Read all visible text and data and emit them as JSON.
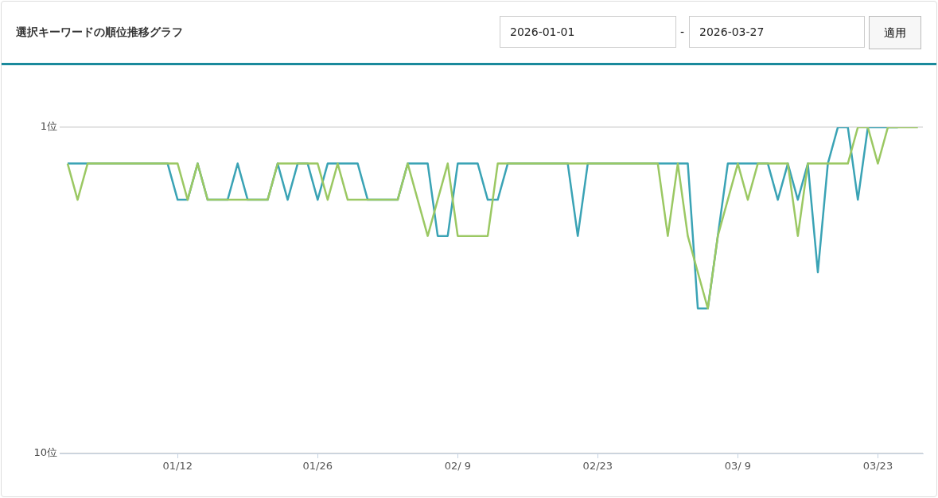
{
  "chart_data": {
    "type": "line",
    "title": "選択キーワードの順位推移グラフ",
    "annotations": [
      "2026-01-01",
      "-",
      "2026-03-27",
      "適用"
    ],
    "x": [
      "2026-01-01",
      "2026-01-02",
      "2026-01-03",
      "2026-01-04",
      "2026-01-05",
      "2026-01-06",
      "2026-01-07",
      "2026-01-08",
      "2026-01-09",
      "2026-01-10",
      "2026-01-11",
      "2026-01-12",
      "2026-01-13",
      "2026-01-14",
      "2026-01-15",
      "2026-01-16",
      "2026-01-17",
      "2026-01-18",
      "2026-01-19",
      "2026-01-20",
      "2026-01-21",
      "2026-01-22",
      "2026-01-23",
      "2026-01-24",
      "2026-01-25",
      "2026-01-26",
      "2026-01-27",
      "2026-01-28",
      "2026-01-29",
      "2026-01-30",
      "2026-01-31",
      "2026-02-01",
      "2026-02-02",
      "2026-02-03",
      "2026-02-04",
      "2026-02-05",
      "2026-02-06",
      "2026-02-07",
      "2026-02-08",
      "2026-02-09",
      "2026-02-10",
      "2026-02-11",
      "2026-02-12",
      "2026-02-13",
      "2026-02-14",
      "2026-02-15",
      "2026-02-16",
      "2026-02-17",
      "2026-02-18",
      "2026-02-19",
      "2026-02-20",
      "2026-02-21",
      "2026-02-22",
      "2026-02-23",
      "2026-02-24",
      "2026-02-25",
      "2026-02-26",
      "2026-02-27",
      "2026-02-28",
      "2026-03-01",
      "2026-03-02",
      "2026-03-03",
      "2026-03-04",
      "2026-03-05",
      "2026-03-06",
      "2026-03-07",
      "2026-03-08",
      "2026-03-09",
      "2026-03-10",
      "2026-03-11",
      "2026-03-12",
      "2026-03-13",
      "2026-03-14",
      "2026-03-15",
      "2026-03-16",
      "2026-03-17",
      "2026-03-18",
      "2026-03-19",
      "2026-03-20",
      "2026-03-21",
      "2026-03-22",
      "2026-03-23",
      "2026-03-24",
      "2026-03-25",
      "2026-03-26",
      "2026-03-27"
    ],
    "series": [
      {
        "color": "#3aa3b5",
        "values": [
          2,
          2,
          2,
          2,
          2,
          2,
          2,
          2,
          2,
          2,
          2,
          3,
          3,
          2,
          3,
          3,
          3,
          2,
          3,
          3,
          3,
          2,
          3,
          2,
          2,
          3,
          2,
          2,
          2,
          2,
          3,
          3,
          3,
          3,
          2,
          2,
          2,
          4,
          4,
          2,
          2,
          2,
          3,
          3,
          2,
          2,
          2,
          2,
          2,
          2,
          2,
          4,
          2,
          2,
          2,
          2,
          2,
          2,
          2,
          2,
          2,
          2,
          2,
          6,
          6,
          4,
          2,
          2,
          2,
          2,
          2,
          3,
          2,
          3,
          2,
          5,
          2,
          1,
          1,
          3,
          1,
          1,
          1,
          1,
          null,
          null
        ]
      },
      {
        "color": "#9bc863",
        "values": [
          2,
          3,
          2,
          2,
          2,
          2,
          2,
          2,
          2,
          2,
          2,
          2,
          3,
          2,
          3,
          3,
          3,
          3,
          3,
          3,
          3,
          2,
          2,
          2,
          2,
          2,
          3,
          2,
          3,
          3,
          3,
          3,
          3,
          3,
          2,
          3,
          4,
          3,
          2,
          4,
          4,
          4,
          4,
          2,
          2,
          2,
          2,
          2,
          2,
          2,
          2,
          2,
          2,
          2,
          2,
          2,
          2,
          2,
          2,
          2,
          4,
          2,
          4,
          5,
          6,
          4,
          3,
          2,
          3,
          2,
          2,
          2,
          2,
          4,
          2,
          2,
          2,
          2,
          2,
          1,
          1,
          2,
          1,
          1,
          1,
          1
        ]
      }
    ],
    "xlim": [
      "2025-12-31T05:00",
      "2026-03-27T12:00"
    ],
    "xticks": [
      {
        "value": "2026-01-12",
        "label": "01/12"
      },
      {
        "value": "2026-01-26",
        "label": "01/26"
      },
      {
        "value": "2026-02-09",
        "label": "02/ 9"
      },
      {
        "value": "2026-02-23",
        "label": "02/23"
      },
      {
        "value": "2026-03-09",
        "label": "03/ 9"
      },
      {
        "value": "2026-03-23",
        "label": "03/23"
      }
    ],
    "ylim": [
      10,
      1
    ],
    "yticks": [
      {
        "value": 1,
        "label": "1位"
      },
      {
        "value": 10,
        "label": "10位"
      }
    ],
    "grid": "y",
    "marker": "none",
    "line_style": "solid"
  }
}
